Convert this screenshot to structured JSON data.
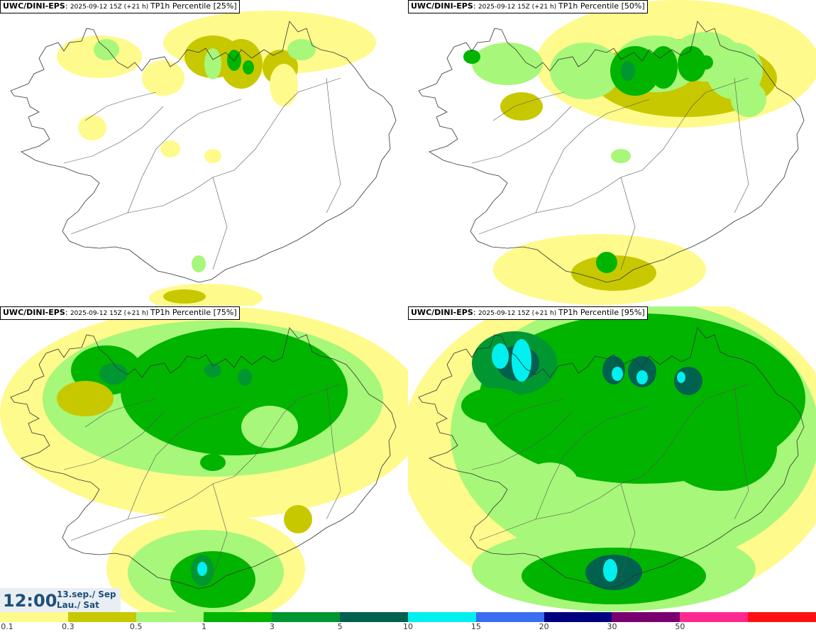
{
  "panels": [
    {
      "model": "UWC/DINI-EPS",
      "run": "2025-09-12 15Z (+21 h)",
      "field": "TP1h Percentile [25%]",
      "level": 0
    },
    {
      "model": "UWC/DINI-EPS",
      "run": "2025-09-12 15Z (+21 h)",
      "field": "TP1h Percentile [50%]",
      "level": 1
    },
    {
      "model": "UWC/DINI-EPS",
      "run": "2025-09-12 15Z (+21 h)",
      "field": "TP1h Percentile [75%]",
      "level": 2
    },
    {
      "model": "UWC/DINI-EPS",
      "run": "2025-09-12 15Z (+21 h)",
      "field": "TP1h Percentile [95%]",
      "level": 3
    }
  ],
  "valid_time": {
    "clock": "12:00",
    "date_line1": "13.sep./ Sep",
    "date_line2": "Lau./ Sat"
  },
  "colorbar": {
    "colors": [
      "#fffa8c",
      "#c8c800",
      "#a7f77a",
      "#00b400",
      "#009632",
      "#00614f",
      "#00f0f0",
      "#3a6ef0",
      "#000080",
      "#7a0070",
      "#ff2890",
      "#ff1010"
    ],
    "ticks": [
      "0.1",
      "0.3",
      "0.5",
      "1",
      "3",
      "5",
      "10",
      "15",
      "20",
      "30",
      "50"
    ]
  }
}
